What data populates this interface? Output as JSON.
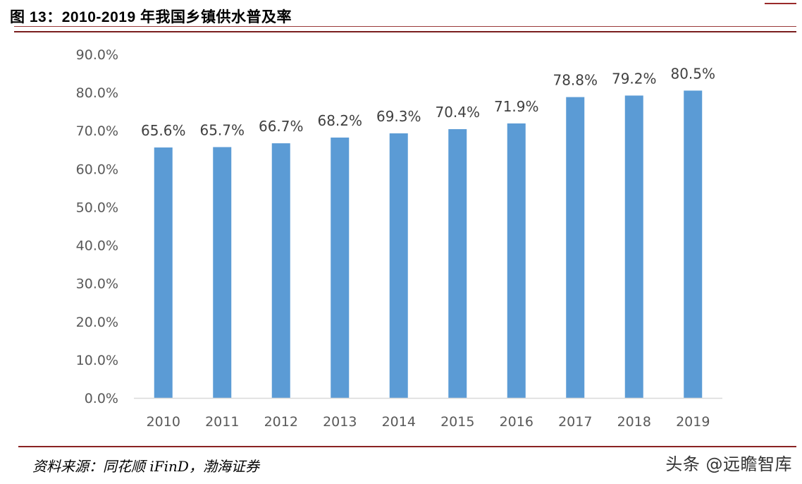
{
  "figure": {
    "title": "图 13：2010-2019 年我国乡镇供水普及率",
    "source": "资料来源：同花顺 iFinD，渤海证券",
    "watermark": "头条 @远瞻智库"
  },
  "colors": {
    "bar": "#5b9bd5",
    "rule": "#7a1e1e",
    "axis_text": "#595959",
    "label_text": "#404040"
  },
  "chart_data": {
    "type": "bar",
    "title": "",
    "xlabel": "",
    "ylabel": "",
    "categories": [
      "2010",
      "2011",
      "2012",
      "2013",
      "2014",
      "2015",
      "2016",
      "2017",
      "2018",
      "2019"
    ],
    "values": [
      65.6,
      65.7,
      66.7,
      68.2,
      69.3,
      70.4,
      71.9,
      78.8,
      79.2,
      80.5
    ],
    "data_labels": [
      "65.6%",
      "65.7%",
      "66.7%",
      "68.2%",
      "69.3%",
      "70.4%",
      "71.9%",
      "78.8%",
      "79.2%",
      "80.5%"
    ],
    "ylim": [
      0,
      90
    ],
    "yticks": [
      0,
      10,
      20,
      30,
      40,
      50,
      60,
      70,
      80,
      90
    ],
    "ytick_labels": [
      "0.0%",
      "10.0%",
      "20.0%",
      "30.0%",
      "40.0%",
      "50.0%",
      "60.0%",
      "70.0%",
      "80.0%",
      "90.0%"
    ],
    "grid": false,
    "legend": "none"
  }
}
